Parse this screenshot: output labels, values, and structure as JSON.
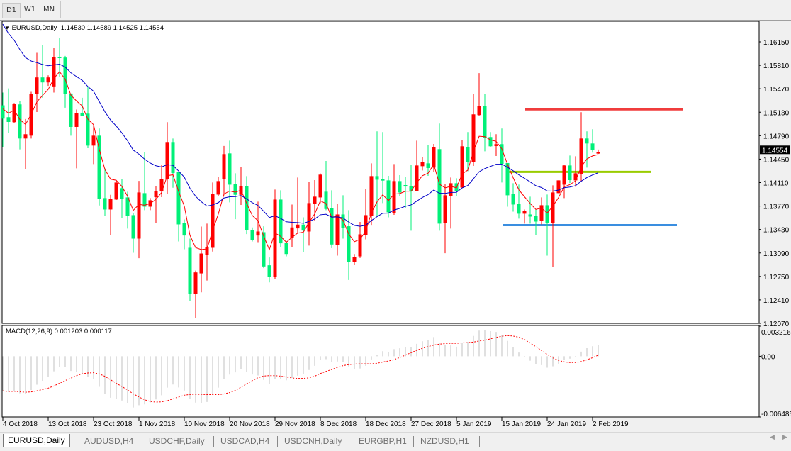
{
  "toolbar": {
    "timeframes": [
      {
        "label": "D1",
        "active": true
      },
      {
        "label": "W1",
        "active": false
      },
      {
        "label": "MN",
        "active": false
      }
    ]
  },
  "chart": {
    "symbol_title": "EURUSD,Daily",
    "ohlc_text": "1.14530 1.14589 1.14525 1.14554",
    "current_price_label": "1.14554",
    "colors": {
      "bull": "#ff0000",
      "bear": "#00f078",
      "fast_ma": "#ff0000",
      "slow_ma": "#0000c8",
      "resistance": "#f03c3c",
      "pivot": "#99cc00",
      "support": "#3a8ee0",
      "macd_hist": "#c0c0c0",
      "macd_signal": "#ff0000"
    },
    "price_ticks": [
      "1.16150",
      "1.15810",
      "1.15470",
      "1.15130",
      "1.14790",
      "1.14450",
      "1.14110",
      "1.13770",
      "1.13430",
      "1.13090",
      "1.12750",
      "1.12410",
      "1.12070"
    ],
    "date_ticks": [
      "4 Oct 2018",
      "13 Oct 2018",
      "23 Oct 2018",
      "1 Nov 2018",
      "10 Nov 2018",
      "20 Nov 2018",
      "29 Nov 2018",
      "8 Dec 2018",
      "18 Dec 2018",
      "27 Dec 2018",
      "5 Jan 2019",
      "15 Jan 2019",
      "24 Jan 2019",
      "2 Feb 2019"
    ],
    "horizontal_lines": [
      {
        "name": "resistance",
        "price": 1.15171
      },
      {
        "name": "pivot",
        "price": 1.14266
      },
      {
        "name": "support",
        "price": 1.13494
      }
    ]
  },
  "chart_data": {
    "type": "candlestick",
    "ylim": [
      1.1207,
      1.1615
    ],
    "ohlc": [
      [
        1.1523,
        1.15415,
        1.14619,
        1.15037
      ],
      [
        1.15058,
        1.15476,
        1.14825,
        1.14989
      ],
      [
        1.14986,
        1.15264,
        1.14979,
        1.15254
      ],
      [
        1.15243,
        1.15295,
        1.14592,
        1.14749
      ],
      [
        1.14749,
        1.15031,
        1.1431,
        1.14811
      ],
      [
        1.1479,
        1.15425,
        1.14749,
        1.15398
      ],
      [
        1.15391,
        1.15991,
        1.15133,
        1.15634
      ],
      [
        1.15634,
        1.16101,
        1.15339,
        1.15562
      ],
      [
        1.15562,
        1.15665,
        1.15511,
        1.15634
      ],
      [
        1.15504,
        1.1606,
        1.15415,
        1.15933
      ],
      [
        1.15929,
        1.16204,
        1.15648,
        1.15916
      ],
      [
        1.15922,
        1.15946,
        1.15195,
        1.15391
      ],
      [
        1.15401,
        1.15401,
        1.1479,
        1.14917
      ],
      [
        1.14917,
        1.15168,
        1.14317,
        1.1512
      ],
      [
        1.15123,
        1.15339,
        1.15079,
        1.15079
      ],
      [
        1.15109,
        1.15494,
        1.14609,
        1.14646
      ],
      [
        1.14646,
        1.14945,
        1.14379,
        1.1479
      ],
      [
        1.1479,
        1.14893,
        1.13779,
        1.13875
      ],
      [
        1.13885,
        1.14317,
        1.13624,
        1.1372
      ],
      [
        1.1372,
        1.13933,
        1.1335,
        1.13878
      ],
      [
        1.13864,
        1.14132,
        1.13858,
        1.14111
      ],
      [
        1.14029,
        1.14166,
        1.13597,
        1.13875
      ],
      [
        1.13895,
        1.13978,
        1.13443,
        1.13628
      ],
      [
        1.13638,
        1.13665,
        1.13093,
        1.13298
      ],
      [
        1.13298,
        1.14135,
        1.13014,
        1.13967
      ],
      [
        1.13957,
        1.14557,
        1.1371,
        1.13761
      ],
      [
        1.13761,
        1.13885,
        1.1371,
        1.13854
      ],
      [
        1.13899,
        1.14063,
        1.13528,
        1.13988
      ],
      [
        1.13981,
        1.14369,
        1.13899,
        1.14166
      ],
      [
        1.14156,
        1.14986,
        1.1394,
        1.14698
      ],
      [
        1.14698,
        1.14749,
        1.14036,
        1.14249
      ],
      [
        1.14259,
        1.14266,
        1.13257,
        1.13504
      ],
      [
        1.13521,
        1.13576,
        1.13144,
        1.13343
      ],
      [
        1.13165,
        1.13298,
        1.12396,
        1.12499
      ],
      [
        1.12499,
        1.12835,
        1.12149,
        1.12808
      ],
      [
        1.12794,
        1.13473,
        1.1252,
        1.13082
      ],
      [
        1.13062,
        1.13515,
        1.12691,
        1.13172
      ],
      [
        1.13165,
        1.14111,
        1.1311,
        1.13947
      ],
      [
        1.13936,
        1.14194,
        1.13919,
        1.14132
      ],
      [
        1.14156,
        1.1464,
        1.13926,
        1.14523
      ],
      [
        1.14533,
        1.14718,
        1.13823,
        1.1408
      ],
      [
        1.14094,
        1.14245,
        1.1358,
        1.13933
      ],
      [
        1.13933,
        1.14338,
        1.13786,
        1.14063
      ],
      [
        1.14063,
        1.14204,
        1.13364,
        1.13425
      ],
      [
        1.13422,
        1.1346,
        1.13257,
        1.13281
      ],
      [
        1.13343,
        1.13834,
        1.13247,
        1.13401
      ],
      [
        1.13391,
        1.13477,
        1.1287,
        1.12894
      ],
      [
        1.12911,
        1.13024,
        1.12664,
        1.12746
      ],
      [
        1.12746,
        1.14008,
        1.12708,
        1.13864
      ],
      [
        1.13864,
        1.13998,
        1.13178,
        1.1323
      ],
      [
        1.13237,
        1.13261,
        1.13041,
        1.13075
      ],
      [
        1.13309,
        1.13792,
        1.13178,
        1.1346
      ],
      [
        1.13446,
        1.14183,
        1.13377,
        1.13501
      ],
      [
        1.13501,
        1.13607,
        1.13103,
        1.13415
      ],
      [
        1.13401,
        1.14122,
        1.13196,
        1.13813
      ],
      [
        1.13803,
        1.14146,
        1.13556,
        1.13906
      ],
      [
        1.13895,
        1.14242,
        1.13813,
        1.14225
      ],
      [
        1.13978,
        1.14423,
        1.1371,
        1.13727
      ],
      [
        1.13741,
        1.13998,
        1.13161,
        1.13213
      ],
      [
        1.13206,
        1.13796,
        1.13051,
        1.13648
      ],
      [
        1.13648,
        1.13926,
        1.13298,
        1.13453
      ],
      [
        1.13477,
        1.1371,
        1.12698,
        1.12962
      ],
      [
        1.12962,
        1.13075,
        1.12914,
        1.13031
      ],
      [
        1.13041,
        1.13539,
        1.13017,
        1.1336
      ],
      [
        1.1335,
        1.14022,
        1.13288,
        1.13638
      ],
      [
        1.13628,
        1.14389,
        1.13487,
        1.14204
      ],
      [
        1.14204,
        1.14852,
        1.13624,
        1.14152
      ],
      [
        1.14166,
        1.14842,
        1.13813,
        1.14139
      ],
      [
        1.14142,
        1.14207,
        1.13607,
        1.13679
      ],
      [
        1.13669,
        1.14379,
        1.13642,
        1.14132
      ],
      [
        1.14132,
        1.14218,
        1.13909,
        1.13967
      ],
      [
        1.14074,
        1.14194,
        1.13741,
        1.14053
      ],
      [
        1.1406,
        1.14362,
        1.13412,
        1.13984
      ],
      [
        1.13988,
        1.14718,
        1.13988,
        1.14358
      ],
      [
        1.14348,
        1.14482,
        1.14286,
        1.1441
      ],
      [
        1.14389,
        1.14657,
        1.14207,
        1.14321
      ],
      [
        1.14327,
        1.1467,
        1.14259,
        1.14629
      ],
      [
        1.14595,
        1.14965,
        1.13412,
        1.13515
      ],
      [
        1.13528,
        1.14091,
        1.13086,
        1.13926
      ],
      [
        1.13916,
        1.14183,
        1.13443,
        1.14101
      ],
      [
        1.14101,
        1.14173,
        1.13916,
        1.13991
      ],
      [
        1.14039,
        1.14732,
        1.14029,
        1.14636
      ],
      [
        1.14626,
        1.14842,
        1.14276,
        1.14403
      ],
      [
        1.14403,
        1.15398,
        1.14351,
        1.15099
      ],
      [
        1.15089,
        1.15696,
        1.15079,
        1.15223
      ],
      [
        1.15223,
        1.15398,
        1.14564,
        1.14763
      ],
      [
        1.1477,
        1.14842,
        1.14619,
        1.14636
      ],
      [
        1.1464,
        1.14811,
        1.14496,
        1.14667
      ],
      [
        1.14667,
        1.14893,
        1.14111,
        1.14382
      ],
      [
        1.14393,
        1.14393,
        1.13761,
        1.13926
      ],
      [
        1.13947,
        1.14101,
        1.13689,
        1.13792
      ],
      [
        1.13803,
        1.1408,
        1.13587,
        1.13659
      ],
      [
        1.13659,
        1.1372,
        1.13515,
        1.137
      ],
      [
        1.13648,
        1.13906,
        1.13515,
        1.13617
      ],
      [
        1.13628,
        1.1372,
        1.1335,
        1.13545
      ],
      [
        1.13556,
        1.13895,
        1.13504,
        1.13782
      ],
      [
        1.13782,
        1.13936,
        1.13051,
        1.13525
      ],
      [
        1.13525,
        1.1407,
        1.12887,
        1.13967
      ],
      [
        1.13957,
        1.14142,
        1.13957,
        1.14142
      ],
      [
        1.1408,
        1.14369,
        1.13885,
        1.14358
      ],
      [
        1.14358,
        1.14502,
        1.14104,
        1.14146
      ],
      [
        1.14142,
        1.14492,
        1.1405,
        1.14245
      ],
      [
        1.14235,
        1.1513,
        1.14122,
        1.14749
      ],
      [
        1.14749,
        1.14852,
        1.14327,
        1.14677
      ],
      [
        1.14677,
        1.14883,
        1.14544,
        1.14585
      ],
      [
        1.1453,
        1.14589,
        1.14525,
        1.14554
      ]
    ]
  },
  "macd": {
    "title": "MACD(12,26,9) 0.001203 0.000117",
    "ticks": [
      "0.003216",
      "0.00",
      "-0.006485"
    ],
    "ylim": [
      -0.006485,
      0.003216
    ]
  },
  "tabs": [
    {
      "label": "EURUSD,Daily",
      "active": true
    },
    {
      "label": "AUDUSD,H4",
      "active": false
    },
    {
      "label": "USDCHF,Daily",
      "active": false
    },
    {
      "label": "USDCAD,H4",
      "active": false
    },
    {
      "label": "USDCNH,Daily",
      "active": false
    },
    {
      "label": "EURGBP,H1",
      "active": false
    },
    {
      "label": "NZDUSD,H1",
      "active": false
    }
  ],
  "scroll": {
    "left_icon": "scroll-left-icon",
    "right_icon": "scroll-right-icon"
  }
}
